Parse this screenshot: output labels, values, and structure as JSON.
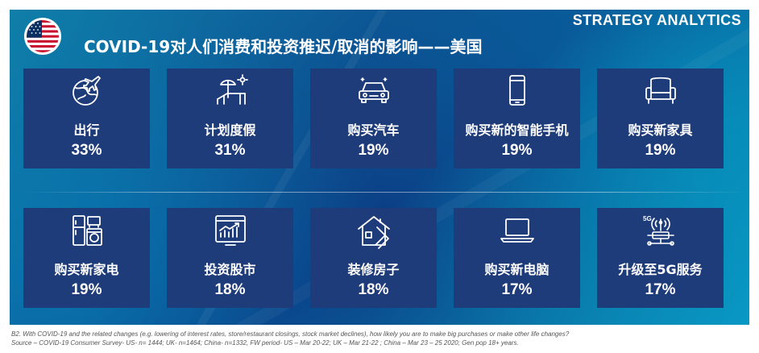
{
  "header": {
    "brand": "STRATEGY ANALYTICS",
    "title": "COVID-19对人们消费和投资推迟/取消的影响——美国"
  },
  "flag": {
    "name": "us-flag"
  },
  "cards": [
    {
      "icon": "globe-plane-icon",
      "label": "出行",
      "value": "33%"
    },
    {
      "icon": "beach-lounger-icon",
      "label": "计划度假",
      "value": "31%"
    },
    {
      "icon": "car-icon",
      "label": "购买汽车",
      "value": "19%"
    },
    {
      "icon": "smartphone-icon",
      "label": "购买新的智能手机",
      "value": "19%"
    },
    {
      "icon": "armchair-icon",
      "label": "购买新家具",
      "value": "19%"
    },
    {
      "icon": "appliances-icon",
      "label": "购买新家电",
      "value": "19%"
    },
    {
      "icon": "stock-chart-icon",
      "label": "投资股市",
      "value": "18%"
    },
    {
      "icon": "house-renovation-icon",
      "label": "装修房子",
      "value": "18%"
    },
    {
      "icon": "laptop-icon",
      "label": "购买新电脑",
      "value": "17%"
    },
    {
      "icon": "5g-network-icon",
      "label": "升级至5G服务",
      "value": "17%",
      "icon_text": "5G"
    }
  ],
  "footnote": {
    "line1": "B2. With COVID-19 and the related changes (e.g. lowering of interest rates, store/restaurant closings, stock market declines), how likely you are to make big purchases or make other life changes?",
    "line2": "Source – COVID-19 Consumer Survey- US- n= 1444; UK- n=1464; China- n=1332, FW period- US – Mar 20-22; UK – Mar 21-22 ; China – Mar 23 – 25 2020; Gen pop 18+ years."
  },
  "colors": {
    "card": "#1f3c7a",
    "banner": "#0b3f86",
    "text": "#ffffff"
  }
}
